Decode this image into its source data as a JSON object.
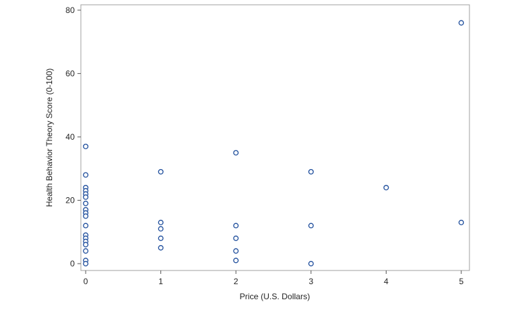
{
  "chart_data": {
    "type": "scatter",
    "x_label": "Price (U.S. Dollars)",
    "y_label": "Health Behavior Theory Score (0-100)",
    "series": [
      {
        "color": "#1f4e9c",
        "x": [
          0,
          0,
          0,
          0,
          0,
          0,
          0,
          0,
          0,
          0,
          0,
          0,
          0,
          0,
          0,
          0,
          0,
          0,
          1,
          1,
          1,
          1,
          1,
          2,
          2,
          2,
          2,
          2,
          3,
          3,
          3,
          4,
          5,
          5
        ],
        "values": [
          37,
          28,
          24,
          23,
          22,
          21,
          19,
          17,
          16,
          15,
          12,
          9,
          8,
          7,
          6,
          4,
          1,
          0,
          29,
          13,
          11,
          8,
          5,
          35,
          12,
          8,
          4,
          1,
          29,
          12,
          0,
          24,
          76,
          13
        ]
      }
    ],
    "xlim": [
      -0.064,
      5.109
    ],
    "ylim": [
      -2.16,
      81.7
    ],
    "xticks": [
      0,
      1,
      2,
      3,
      4,
      5
    ],
    "yticks": [
      0,
      20,
      40,
      60,
      80
    ],
    "grid": false
  }
}
